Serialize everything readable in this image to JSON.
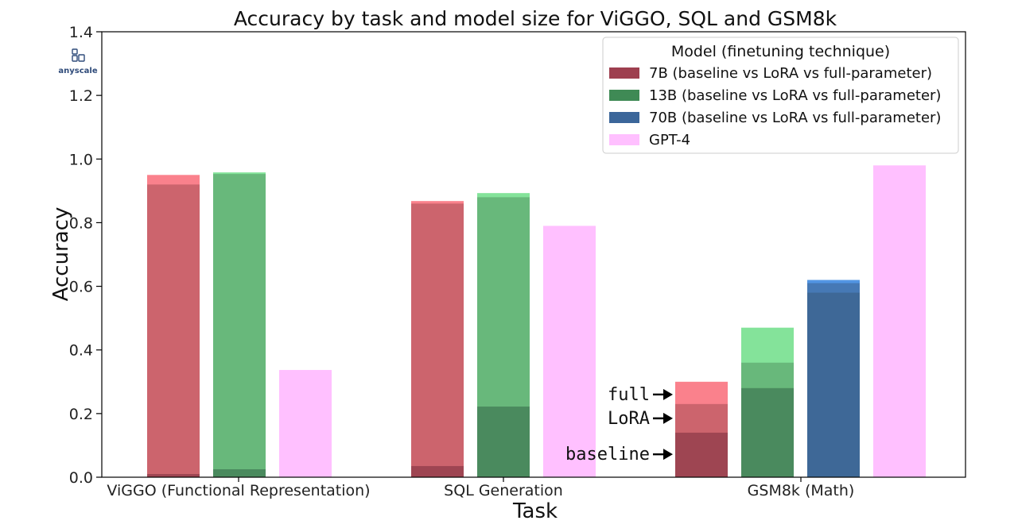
{
  "logo": {
    "text": "anyscale",
    "icon": "anyscale-logo-icon"
  },
  "chart_data": {
    "type": "bar",
    "title": "Accuracy by task and model size for ViGGO, SQL and GSM8k",
    "xlabel": "Task",
    "ylabel": "Accuracy",
    "ylim": [
      0,
      1.4
    ],
    "yticks": [
      "0.0",
      "0.2",
      "0.4",
      "0.6",
      "0.8",
      "1.0",
      "1.2",
      "1.4"
    ],
    "categories": [
      "ViGGO (Functional Representation)",
      "SQL Generation",
      "GSM8k (Math)"
    ],
    "legend": {
      "title": "Model (finetuning technique)",
      "placement": "top-right",
      "entries": [
        {
          "label": "7B (baseline vs LoRA vs full-parameter)",
          "color": "#9e3f4f"
        },
        {
          "label": "13B (baseline vs LoRA vs full-parameter)",
          "color": "#3f8a55"
        },
        {
          "label": "70B (baseline vs LoRA vs full-parameter)",
          "color": "#3b669a"
        },
        {
          "label": "GPT-4",
          "color": "#ffc0ff"
        }
      ]
    },
    "series": [
      {
        "name": "7B",
        "values": [
          {
            "baseline": 0.01,
            "lora": 0.92,
            "full": 0.95
          },
          {
            "baseline": 0.035,
            "lora": 0.86,
            "full": 0.868
          },
          {
            "baseline": 0.14,
            "lora": 0.23,
            "full": 0.3
          }
        ]
      },
      {
        "name": "13B",
        "values": [
          {
            "baseline": 0.025,
            "lora": 0.953,
            "full": 0.958
          },
          {
            "baseline": 0.222,
            "lora": 0.88,
            "full": 0.893
          },
          {
            "baseline": 0.28,
            "lora": 0.36,
            "full": 0.47
          }
        ]
      },
      {
        "name": "70B",
        "values": [
          null,
          null,
          {
            "baseline": 0.58,
            "lora": 0.61,
            "full": 0.62
          }
        ]
      },
      {
        "name": "GPT-4",
        "values": [
          0.337,
          0.79,
          0.98
        ]
      }
    ],
    "annotations": [
      {
        "text": "full",
        "value": 0.26
      },
      {
        "text": "LoRA",
        "value": 0.185
      },
      {
        "text": "baseline",
        "value": 0.072
      }
    ],
    "grid": false
  }
}
